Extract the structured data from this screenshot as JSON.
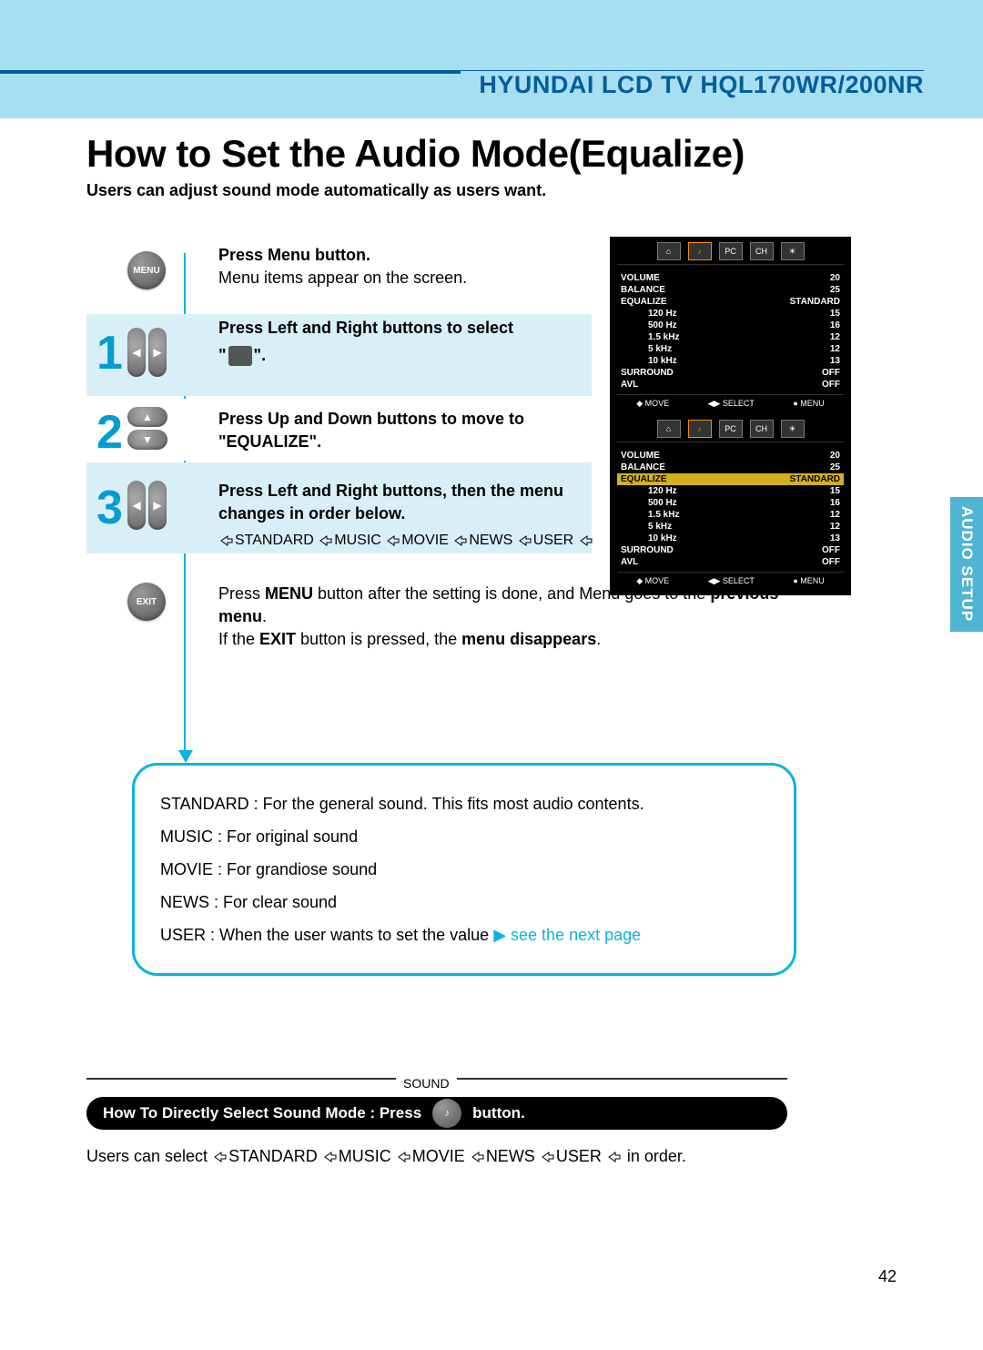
{
  "header": {
    "product": "HYUNDAI LCD TV HQL170WR/200NR"
  },
  "title": "How to Set the Audio Mode(Equalize)",
  "subtitle": "Users can adjust sound mode automatically as users want.",
  "sidebar_tab": "AUDIO SETUP",
  "buttons": {
    "menu": "MENU",
    "exit": "EXIT"
  },
  "step1": {
    "num": "1",
    "l1": "Press Menu button.",
    "l2": "Menu items appear on the screen.",
    "l3": "Press Left and Right buttons to select",
    "l4a": "\"",
    "l4b": "\"."
  },
  "step2": {
    "num": "2",
    "l1": "Press Up and Down buttons to move to",
    "l2": "\"EQUALIZE\"."
  },
  "step3": {
    "num": "3",
    "l1": "Press Left and Right buttons, then the menu",
    "l2": "changes in order below.",
    "seq": [
      "STANDARD",
      "MUSIC",
      "MOVIE",
      "NEWS",
      "USER"
    ]
  },
  "final": {
    "p1a": "Press ",
    "p1b": "MENU",
    "p1c": " button after the setting is done, and Menu goes to the ",
    "p1d": "previous menu",
    "p1e": ".",
    "p2a": "If the ",
    "p2b": "EXIT",
    "p2c": " button is pressed, the ",
    "p2d": "menu disappears",
    "p2e": "."
  },
  "info": {
    "r1": "STANDARD : For the general sound. This fits most audio contents.",
    "r2": "MUSIC : For original sound",
    "r3": "MOVIE : For grandiose sound",
    "r4": "NEWS : For clear sound",
    "r5a": "USER : When the user wants to set the value  ",
    "r5b": "see the next page"
  },
  "sound_label": "SOUND",
  "blackbar": {
    "a": "How To Directly Select Sound Mode : Press",
    "b": "button."
  },
  "order_line": {
    "a": "Users can select ",
    "seq": [
      "STANDARD",
      "MUSIC",
      "MOVIE",
      "NEWS",
      "USER"
    ],
    "b": " in order."
  },
  "page": "42",
  "osd": {
    "tabs": [
      "⌂",
      "♪",
      "PC",
      "CH",
      "☀"
    ],
    "rows": [
      {
        "l": "VOLUME",
        "r": "20",
        "indent": false
      },
      {
        "l": "BALANCE",
        "r": "25",
        "indent": false
      },
      {
        "l": "EQUALIZE",
        "r": "STANDARD",
        "indent": false
      },
      {
        "l": "120  Hz",
        "r": "15",
        "indent": true
      },
      {
        "l": "500  Hz",
        "r": "16",
        "indent": true
      },
      {
        "l": "1.5  kHz",
        "r": "12",
        "indent": true
      },
      {
        "l": "5  kHz",
        "r": "12",
        "indent": true
      },
      {
        "l": "10  kHz",
        "r": "13",
        "indent": true
      },
      {
        "l": "SURROUND",
        "r": "OFF",
        "indent": false
      },
      {
        "l": "AVL",
        "r": "OFF",
        "indent": false
      }
    ],
    "footer": [
      "◆ MOVE",
      "◀▶ SELECT",
      "● MENU"
    ]
  },
  "colors": {
    "header_band": "#a8dff0",
    "header_line": "#005d9e",
    "accent": "#0bb3e0",
    "step_num": "#009dd1",
    "osd_hl": "#d4b020",
    "split_bg": "#d9eff7"
  }
}
